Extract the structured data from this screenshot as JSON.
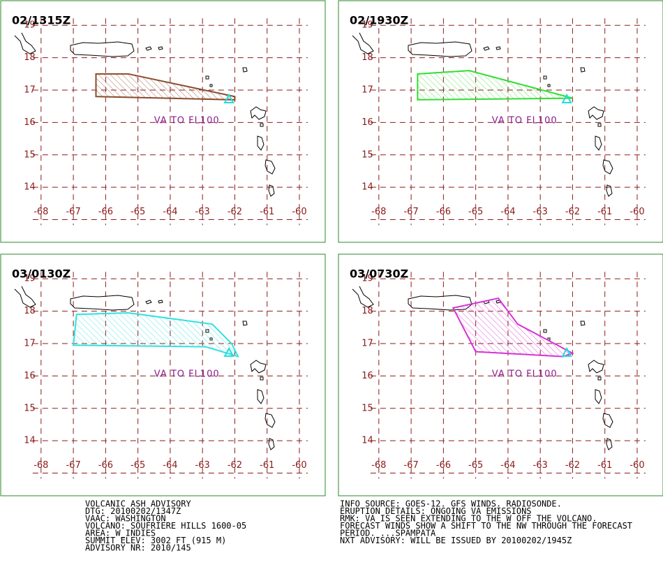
{
  "map": {
    "xlim": [
      -69.25,
      -59.2
    ],
    "ylim": [
      12.3,
      19.76
    ],
    "xticks": [
      -68,
      -67,
      -66,
      -65,
      -64,
      -63,
      -62,
      -61,
      -60
    ],
    "yticks": [
      14,
      15,
      16,
      17,
      18,
      19
    ],
    "ygrid": [
      13,
      14,
      15,
      16,
      17,
      18,
      19
    ],
    "grid_color": "#8b1a1a",
    "volcano": [
      -62.18,
      16.72
    ],
    "volcano_color": "#22dddd",
    "panels": [
      {
        "label": "02/1315Z",
        "color": "#8b4a2b",
        "annotation": "VA TO FL100",
        "polygon": [
          [
            -66.3,
            17.5
          ],
          [
            -65.3,
            17.5
          ],
          [
            -62.0,
            16.8
          ],
          [
            -62.0,
            16.7
          ],
          [
            -66.3,
            16.8
          ]
        ]
      },
      {
        "label": "02/1930Z",
        "color": "#33dd33",
        "annotation": "VA TO FL100",
        "polygon": [
          [
            -66.8,
            17.5
          ],
          [
            -65.2,
            17.6
          ],
          [
            -62.0,
            16.75
          ],
          [
            -66.8,
            16.7
          ]
        ]
      },
      {
        "label": "03/0130Z",
        "color": "#33e0e0",
        "annotation": "VA TO FL100",
        "polygon": [
          [
            -66.9,
            17.9
          ],
          [
            -65.3,
            17.95
          ],
          [
            -62.7,
            17.6
          ],
          [
            -62.1,
            17.0
          ],
          [
            -61.9,
            16.6
          ],
          [
            -62.9,
            16.9
          ],
          [
            -67.0,
            16.95
          ]
        ]
      },
      {
        "label": "03/0730Z",
        "color": "#d633d6",
        "annotation": "VA TO FL100",
        "polygon": [
          [
            -65.7,
            18.1
          ],
          [
            -64.3,
            18.4
          ],
          [
            -63.7,
            17.6
          ],
          [
            -62.0,
            16.7
          ],
          [
            -62.3,
            16.6
          ],
          [
            -65.0,
            16.75
          ]
        ]
      }
    ]
  },
  "advisory": {
    "left": [
      "VOLCANIC ASH ADVISORY",
      "DTG: 20100202/1347Z",
      "VAAC: WASHINGTON",
      "VOLCANO: SOUFRIERE HILLS 1600-05",
      "AREA: W_INDIES",
      "SUMMIT ELEV: 3002 FT (915 M)",
      "ADVISORY NR: 2010/145"
    ],
    "right": [
      "INFO SOURCE: GOES-12. GFS WINDS. RADIOSONDE.",
      "ERUPTION DETAILS: ONGOING VA EMISSIONS",
      "RMK: VA IS SEEN EXTENDING TO THE W OFF THE VOLCANO.",
      "FORECAST WINDS SHOW A SHIFT TO THE NW THROUGH THE FORECAST",
      "PERIOD. ...SPAMPATA",
      "NXT ADVISORY: WILL BE ISSUED BY 20100202/1945Z"
    ]
  }
}
